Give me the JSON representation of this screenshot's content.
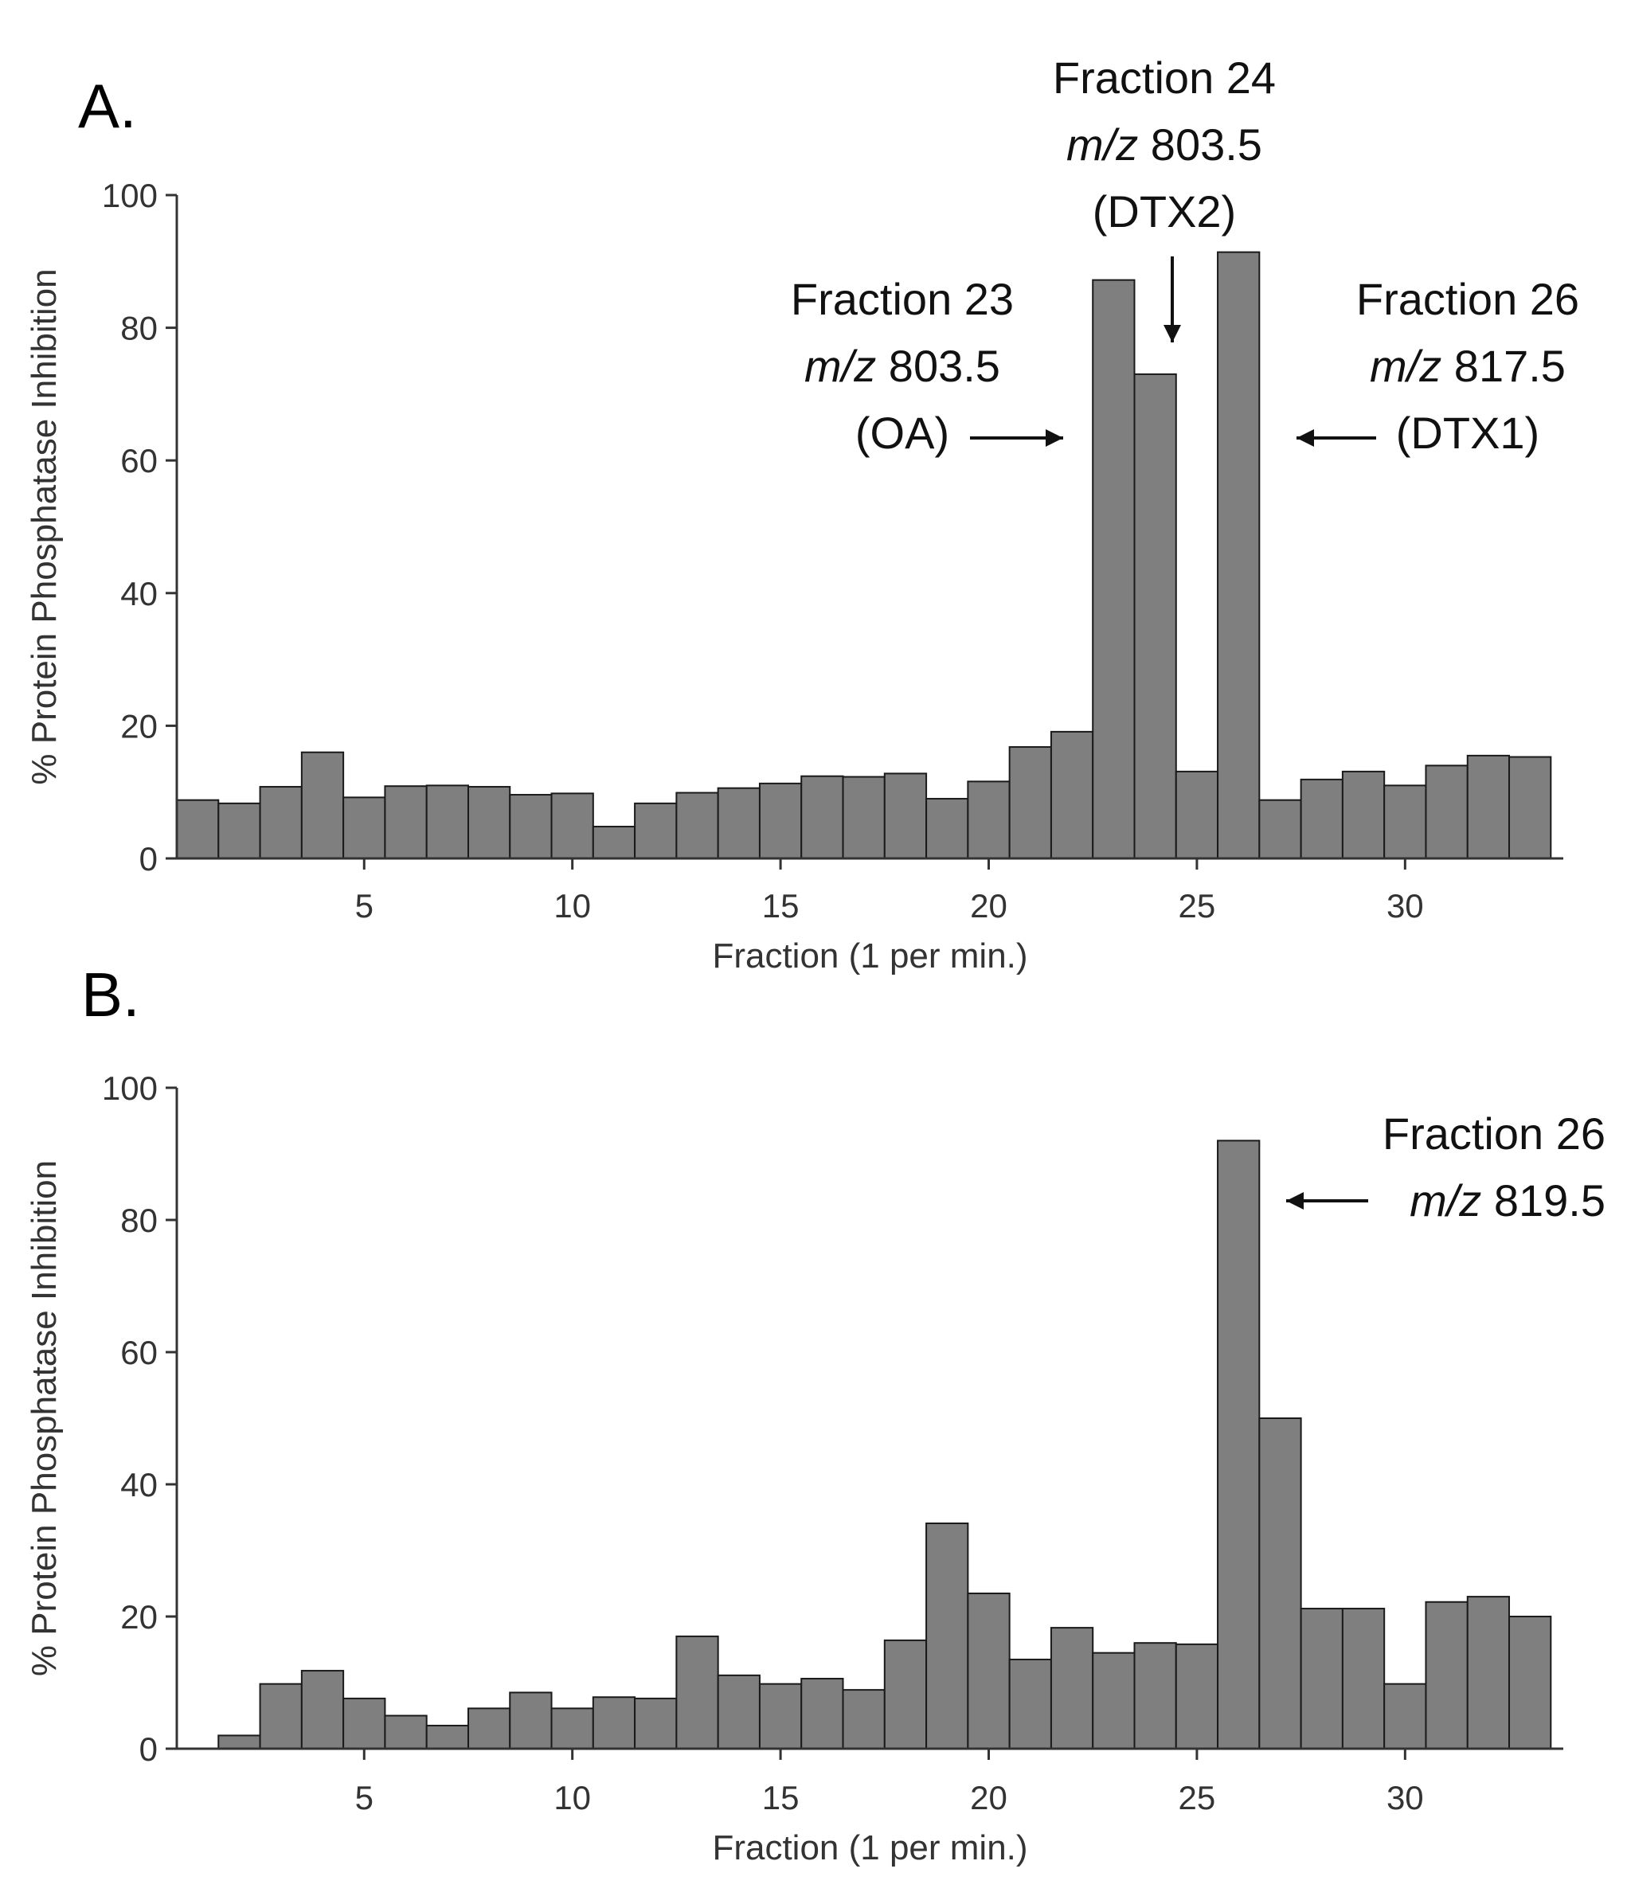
{
  "chart_data": [
    {
      "type": "bar",
      "panel_label": "A.",
      "xlabel": "Fraction (1 per min.)",
      "ylabel": "% Protein Phosphatase Inhibition",
      "xlim": [
        0.5,
        33.8
      ],
      "ylim": [
        0,
        100
      ],
      "xticks": [
        5,
        10,
        15,
        20,
        25,
        30
      ],
      "yticks": [
        0,
        20,
        40,
        60,
        80,
        100
      ],
      "grid": false,
      "bar_color": "#7f7f7f",
      "categories": [
        1,
        2,
        3,
        4,
        5,
        6,
        7,
        8,
        9,
        10,
        11,
        12,
        13,
        14,
        15,
        16,
        17,
        18,
        19,
        20,
        21,
        22,
        23,
        24,
        25,
        26,
        27,
        28,
        29,
        30,
        31,
        32,
        33
      ],
      "values": [
        8.8,
        8.3,
        10.8,
        16,
        9.2,
        10.9,
        11,
        10.8,
        9.6,
        9.8,
        4.8,
        8.3,
        9.9,
        10.6,
        11.3,
        12.4,
        12.3,
        12.8,
        9,
        11.6,
        16.8,
        19.1,
        87.2,
        73,
        13.1,
        91.4,
        8.8,
        11.9,
        13.1,
        11,
        14,
        15.5,
        15.3
      ],
      "annotations": [
        {
          "lines": [
            {
              "text": "Fraction 23"
            },
            {
              "italic": "m/z",
              "rest": " 803.5"
            },
            {
              "text": "(OA)"
            }
          ],
          "target_fraction": 23,
          "arrow": "right"
        },
        {
          "lines": [
            {
              "text": "Fraction 24"
            },
            {
              "italic": "m/z",
              "rest": " 803.5"
            },
            {
              "text": "(DTX2)"
            }
          ],
          "target_fraction": 24,
          "arrow": "down"
        },
        {
          "lines": [
            {
              "text": "Fraction 26"
            },
            {
              "italic": "m/z",
              "rest": " 817.5"
            },
            {
              "text": "(DTX1)"
            }
          ],
          "target_fraction": 26,
          "arrow": "left"
        }
      ]
    },
    {
      "type": "bar",
      "panel_label": "B.",
      "xlabel": "Fraction (1 per min.)",
      "ylabel": "% Protein Phosphatase Inhibition",
      "xlim": [
        0.5,
        33.8
      ],
      "ylim": [
        0,
        100
      ],
      "xticks": [
        5,
        10,
        15,
        20,
        25,
        30
      ],
      "yticks": [
        0,
        20,
        40,
        60,
        80,
        100
      ],
      "grid": false,
      "bar_color": "#7f7f7f",
      "categories": [
        1,
        2,
        3,
        4,
        5,
        6,
        7,
        8,
        9,
        10,
        11,
        12,
        13,
        14,
        15,
        16,
        17,
        18,
        19,
        20,
        21,
        22,
        23,
        24,
        25,
        26,
        27,
        28,
        29,
        30,
        31,
        32,
        33
      ],
      "values": [
        0,
        2,
        9.8,
        11.8,
        7.6,
        5,
        3.5,
        6.1,
        8.5,
        6.1,
        7.8,
        7.6,
        17,
        11.1,
        9.8,
        10.6,
        8.9,
        16.4,
        34.1,
        23.5,
        13.5,
        18.3,
        14.5,
        16,
        15.8,
        92,
        50,
        21.2,
        21.2,
        9.8,
        22.2,
        23,
        20
      ],
      "annotations": [
        {
          "lines": [
            {
              "text": "Fraction 26"
            },
            {
              "italic": "m/z",
              "rest": " 819.5"
            }
          ],
          "target_fraction": 26,
          "arrow": "left"
        }
      ]
    }
  ]
}
